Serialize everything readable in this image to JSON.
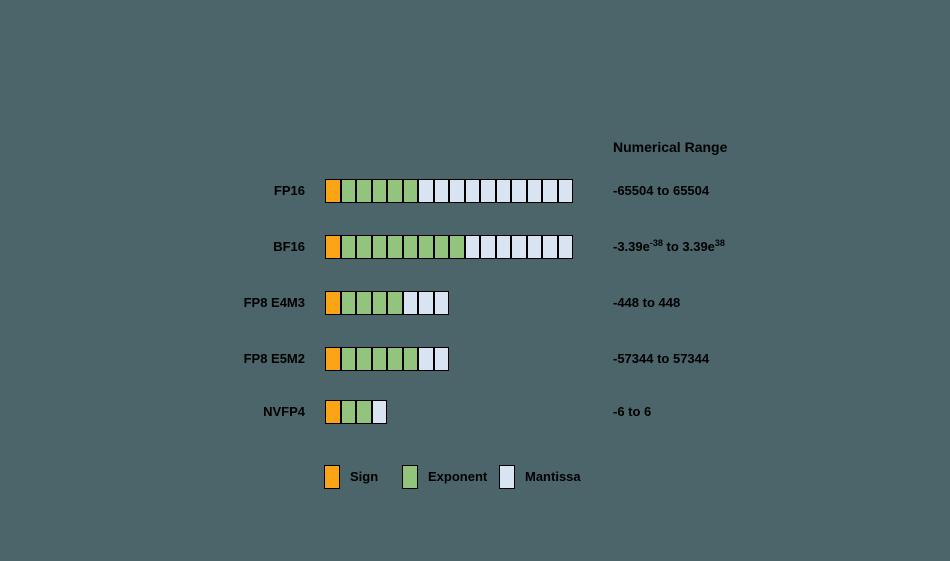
{
  "colors": {
    "background": "#4B656A",
    "sign": "#FBA416",
    "exponent": "#93C47D",
    "mantissa": "#D9E4F2",
    "border": "#000000",
    "text": "#000000"
  },
  "header": {
    "numerical_range": "Numerical Range"
  },
  "rows": [
    {
      "label": "FP16",
      "bits": {
        "sign": 1,
        "exponent": 5,
        "mantissa": 10
      },
      "range_parts": [
        {
          "text": "-65504 to 65504"
        }
      ]
    },
    {
      "label": "BF16",
      "bits": {
        "sign": 1,
        "exponent": 8,
        "mantissa": 7
      },
      "range_parts": [
        {
          "text": "-3.39e"
        },
        {
          "sup": "-38"
        },
        {
          "text": " to 3.39e"
        },
        {
          "sup": "38"
        }
      ]
    },
    {
      "label": "FP8 E4M3",
      "bits": {
        "sign": 1,
        "exponent": 4,
        "mantissa": 3
      },
      "range_parts": [
        {
          "text": "-448 to 448"
        }
      ]
    },
    {
      "label": "FP8 E5M2",
      "bits": {
        "sign": 1,
        "exponent": 5,
        "mantissa": 2
      },
      "range_parts": [
        {
          "text": "-57344 to 57344"
        }
      ]
    },
    {
      "label": "NVFP4",
      "bits": {
        "sign": 1,
        "exponent": 2,
        "mantissa": 1
      },
      "range_parts": [
        {
          "text": "-6 to 6"
        }
      ]
    }
  ],
  "legend": [
    {
      "type": "sign",
      "label": "Sign"
    },
    {
      "type": "exponent",
      "label": "Exponent"
    },
    {
      "type": "mantissa",
      "label": "Mantissa"
    }
  ]
}
